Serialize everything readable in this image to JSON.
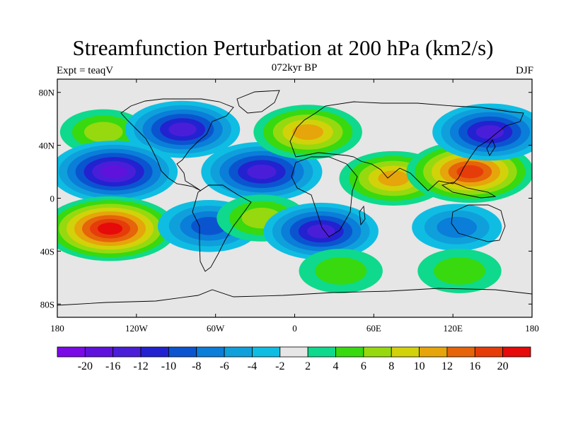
{
  "header": {
    "title": "Streamfunction Perturbation at 200 hPa (km2/s)",
    "experiment": "Expt = teaqV",
    "period": "072kyr BP",
    "season": "DJF"
  },
  "map": {
    "projection": "cylindrical-equidistant",
    "lon_range": [
      -180,
      180
    ],
    "lat_range": [
      -90,
      90
    ],
    "lat_ticks": [
      {
        "lat": 80,
        "label": "80N"
      },
      {
        "lat": 40,
        "label": "40N"
      },
      {
        "lat": 0,
        "label": "0"
      },
      {
        "lat": -40,
        "label": "40S"
      },
      {
        "lat": -80,
        "label": "80S"
      }
    ],
    "lon_ticks": [
      {
        "lon": -180,
        "label": "180"
      },
      {
        "lon": -120,
        "label": "120W"
      },
      {
        "lon": -60,
        "label": "60W"
      },
      {
        "lon": 0,
        "label": "0"
      },
      {
        "lon": 60,
        "label": "60E"
      },
      {
        "lon": 120,
        "label": "120E"
      },
      {
        "lon": 180,
        "label": "180"
      }
    ],
    "centers": [
      {
        "name": "north-pacific-positive",
        "lon": -145,
        "lat": 50,
        "value": 7,
        "type": "high"
      },
      {
        "name": "north-america-negative",
        "lon": -85,
        "lat": 52,
        "value": -16,
        "type": "low"
      },
      {
        "name": "east-pacific-negative",
        "lon": -137,
        "lat": 20,
        "value": -20,
        "type": "low"
      },
      {
        "name": "tropical-atlantic-negative",
        "lon": -25,
        "lat": 20,
        "value": -18,
        "type": "low"
      },
      {
        "name": "europe-positive",
        "lon": 10,
        "lat": 50,
        "value": 14,
        "type": "high"
      },
      {
        "name": "asia-indian-positive",
        "lon": 75,
        "lat": 15,
        "value": 14,
        "type": "high"
      },
      {
        "name": "west-pacific-positive",
        "lon": 133,
        "lat": 20,
        "value": 20,
        "type": "high"
      },
      {
        "name": "northeast-asia-negative",
        "lon": 148,
        "lat": 50,
        "value": -16,
        "type": "low"
      },
      {
        "name": "south-pacific-positive",
        "lon": -140,
        "lat": -23,
        "value": 22,
        "type": "high"
      },
      {
        "name": "south-america-negative",
        "lon": -65,
        "lat": -21,
        "value": -12,
        "type": "low"
      },
      {
        "name": "south-atlantic-positive",
        "lon": -25,
        "lat": -15,
        "value": 8,
        "type": "high"
      },
      {
        "name": "southern-africa-negative",
        "lon": 20,
        "lat": -25,
        "value": -16,
        "type": "low"
      },
      {
        "name": "australia-negative",
        "lon": 123,
        "lat": -22,
        "value": -8,
        "type": "low"
      },
      {
        "name": "southern-indian-positive",
        "lon": 35,
        "lat": -55,
        "value": 6,
        "type": "high"
      },
      {
        "name": "southern-ocean-positive",
        "lon": 125,
        "lat": -55,
        "value": 6,
        "type": "high"
      }
    ]
  },
  "colorbar": {
    "labels": [
      "-20",
      "-16",
      "-12",
      "-10",
      "-8",
      "-6",
      "-4",
      "-2",
      "2",
      "4",
      "6",
      "8",
      "10",
      "12",
      "16",
      "20"
    ],
    "colors": [
      "#7a0ae6",
      "#6012dd",
      "#4a1ed8",
      "#2222d0",
      "#0a55cf",
      "#0a7ed8",
      "#0fa0dc",
      "#0fbde3",
      "#e6e6e6",
      "#0fd98c",
      "#38d90f",
      "#96d90f",
      "#d2d20a",
      "#e6a50a",
      "#e6640a",
      "#e63c0a",
      "#e60a0a"
    ]
  }
}
